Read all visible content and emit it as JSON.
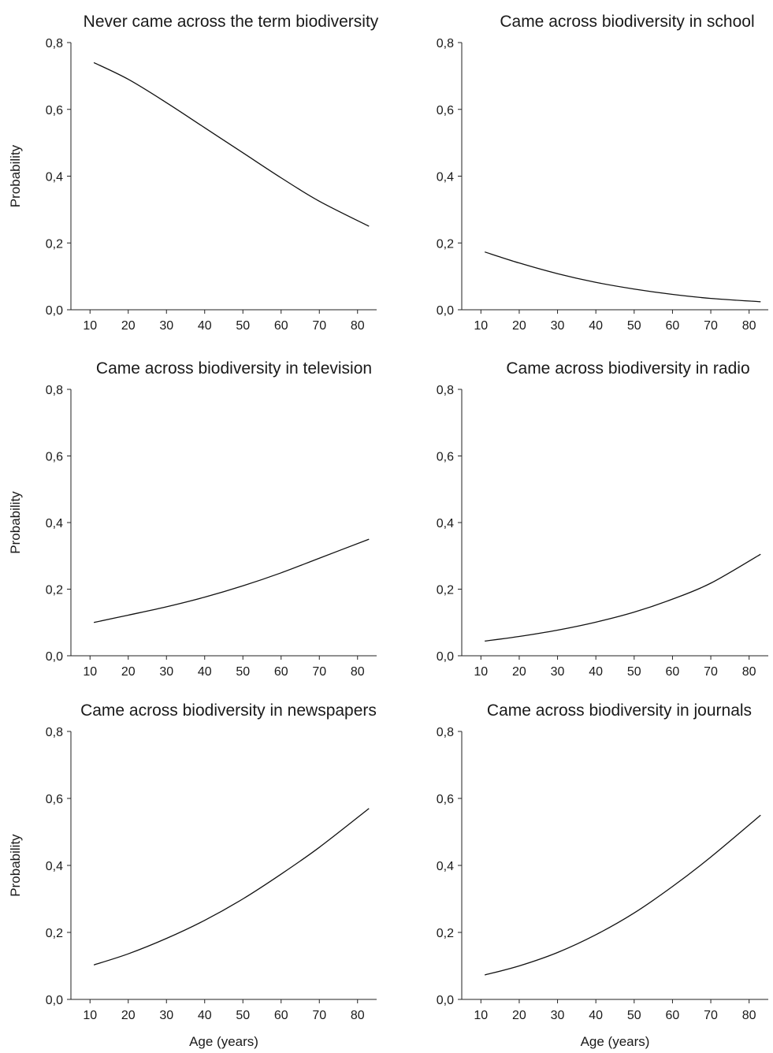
{
  "chart_data": [
    {
      "type": "line",
      "title": "Never came across the term biodiversity",
      "xlabel": "",
      "ylabel": "Probability",
      "xlim": [
        5,
        85
      ],
      "ylim": [
        0,
        0.8
      ],
      "xticks": [
        10,
        20,
        30,
        40,
        50,
        60,
        70,
        80
      ],
      "yticks": [
        "0,0",
        "0,2",
        "0,4",
        "0,6",
        "0,8"
      ],
      "grid": false,
      "series": [
        {
          "x": [
            11,
            20,
            30,
            40,
            50,
            60,
            70,
            83
          ],
          "y": [
            0.74,
            0.69,
            0.62,
            0.545,
            0.47,
            0.395,
            0.325,
            0.25
          ]
        }
      ]
    },
    {
      "type": "line",
      "title": "Came across biodiversity in school",
      "xlabel": "",
      "ylabel": "",
      "xlim": [
        5,
        85
      ],
      "ylim": [
        0,
        0.8
      ],
      "xticks": [
        10,
        20,
        30,
        40,
        50,
        60,
        70,
        80
      ],
      "yticks": [
        "0,0",
        "0,2",
        "0,4",
        "0,6",
        "0,8"
      ],
      "grid": false,
      "series": [
        {
          "x": [
            11,
            20,
            30,
            40,
            50,
            60,
            70,
            83
          ],
          "y": [
            0.173,
            0.14,
            0.108,
            0.082,
            0.062,
            0.046,
            0.034,
            0.024
          ]
        }
      ]
    },
    {
      "type": "line",
      "title": "Came across biodiversity in television",
      "xlabel": "",
      "ylabel": "Probability",
      "xlim": [
        5,
        85
      ],
      "ylim": [
        0,
        0.8
      ],
      "xticks": [
        10,
        20,
        30,
        40,
        50,
        60,
        70,
        80
      ],
      "yticks": [
        "0,0",
        "0,2",
        "0,4",
        "0,6",
        "0,8"
      ],
      "grid": false,
      "series": [
        {
          "x": [
            11,
            20,
            30,
            40,
            50,
            60,
            70,
            83
          ],
          "y": [
            0.1,
            0.122,
            0.147,
            0.176,
            0.21,
            0.249,
            0.293,
            0.35
          ]
        }
      ]
    },
    {
      "type": "line",
      "title": "Came across biodiversity in radio",
      "xlabel": "",
      "ylabel": "",
      "xlim": [
        5,
        85
      ],
      "ylim": [
        0,
        0.8
      ],
      "xticks": [
        10,
        20,
        30,
        40,
        50,
        60,
        70,
        80
      ],
      "yticks": [
        "0,0",
        "0,2",
        "0,4",
        "0,6",
        "0,8"
      ],
      "grid": false,
      "series": [
        {
          "x": [
            11,
            20,
            30,
            40,
            50,
            60,
            70,
            83
          ],
          "y": [
            0.044,
            0.058,
            0.077,
            0.101,
            0.131,
            0.17,
            0.218,
            0.305
          ]
        }
      ]
    },
    {
      "type": "line",
      "title": "Came across biodiversity in newspapers",
      "xlabel": "Age (years)",
      "ylabel": "Probability",
      "xlim": [
        5,
        85
      ],
      "ylim": [
        0,
        0.8
      ],
      "xticks": [
        10,
        20,
        30,
        40,
        50,
        60,
        70,
        80
      ],
      "yticks": [
        "0,0",
        "0,2",
        "0,4",
        "0,6",
        "0,8"
      ],
      "grid": false,
      "series": [
        {
          "x": [
            11,
            20,
            30,
            40,
            50,
            60,
            70,
            83
          ],
          "y": [
            0.103,
            0.136,
            0.182,
            0.236,
            0.3,
            0.374,
            0.454,
            0.57
          ]
        }
      ]
    },
    {
      "type": "line",
      "title": "Came across biodiversity in journals",
      "xlabel": "Age (years)",
      "ylabel": "",
      "xlim": [
        5,
        85
      ],
      "ylim": [
        0,
        0.8
      ],
      "xticks": [
        10,
        20,
        30,
        40,
        50,
        60,
        70,
        80
      ],
      "yticks": [
        "0,0",
        "0,2",
        "0,4",
        "0,6",
        "0,8"
      ],
      "grid": false,
      "series": [
        {
          "x": [
            11,
            20,
            30,
            40,
            50,
            60,
            70,
            83
          ],
          "y": [
            0.073,
            0.1,
            0.14,
            0.193,
            0.258,
            0.337,
            0.425,
            0.55
          ]
        }
      ]
    }
  ]
}
